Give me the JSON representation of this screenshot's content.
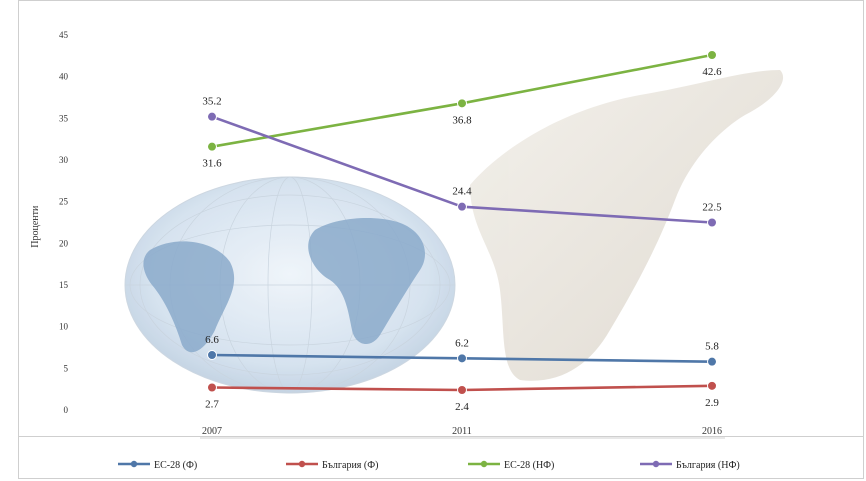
{
  "chart_data": {
    "type": "line",
    "title": "",
    "xlabel": "",
    "ylabel": "Проценти",
    "ylim": [
      0,
      45
    ],
    "yticks": [
      0,
      5,
      10,
      15,
      20,
      25,
      30,
      35,
      40,
      45
    ],
    "ytick_labels": [
      "0",
      "5",
      "10",
      "15",
      "20",
      "25",
      "30",
      "35",
      "40",
      "45"
    ],
    "categories": [
      "2007",
      "2011",
      "2016"
    ],
    "series": [
      {
        "name": "ЕС-28 (Ф)",
        "color": "#4f77a8",
        "values": [
          6.6,
          6.2,
          5.8
        ],
        "labels": [
          "6.6",
          "6.2",
          "5.8"
        ],
        "label_pos": "above"
      },
      {
        "name": "България (Ф)",
        "color": "#c0504d",
        "values": [
          2.7,
          2.4,
          2.9
        ],
        "labels": [
          "2.7",
          "2.4",
          "2.9"
        ],
        "label_pos": "below"
      },
      {
        "name": "ЕС-28 (НФ)",
        "color": "#7cb342",
        "values": [
          31.6,
          36.8,
          42.6
        ],
        "labels": [
          "31.6",
          "36.8",
          "42.6"
        ],
        "label_pos": "below"
      },
      {
        "name": "България (НФ)",
        "color": "#7e6bb4",
        "values": [
          35.2,
          24.4,
          22.5
        ],
        "labels": [
          "35.2",
          "24.4",
          "22.5"
        ],
        "label_pos": "above"
      }
    ],
    "grid": false,
    "legend_position": "bottom",
    "background_image": "globe-and-hand"
  }
}
